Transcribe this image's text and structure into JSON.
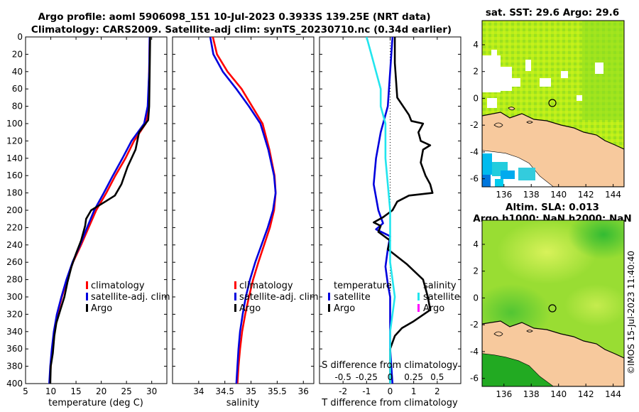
{
  "titles": {
    "line1": "Argo profile: aoml 5906098_151 10-Jul-2023 0.3933S 139.25E (NRT data)",
    "line2": "Climatology: CARS2009. Satellite-adj clim: synTS_20230710.nc (0.34d earlier)",
    "map1": "sat. SST: 29.6 Argo: 29.6",
    "map2_line1": "Altim. SLA: 0.013",
    "map2_line2": "Argo h1000: NaN h2000: NaN",
    "stamp": "©IMOS 15-Jul-2023 11:40:40"
  },
  "colors": {
    "climatology": "#ff0000",
    "satellite": "#0000dd",
    "argo": "#000000",
    "salinity_satellite": "#22e5ee",
    "salinity_argo": "#ff00ff",
    "land": "#f7c99d"
  },
  "chart_data": [
    {
      "type": "line",
      "name": "temperature",
      "xlabel": "temperature (deg C)",
      "xlim": [
        5,
        33
      ],
      "xticks": [
        5,
        10,
        15,
        20,
        25,
        30
      ],
      "ylim": [
        0,
        400
      ],
      "yticks": [
        0,
        20,
        40,
        60,
        80,
        100,
        120,
        140,
        160,
        180,
        200,
        220,
        240,
        260,
        280,
        300,
        320,
        340,
        360,
        380,
        400
      ],
      "legend": [
        "climatology",
        "satellite-adj. clim",
        "Argo"
      ],
      "series": [
        {
          "name": "climatology",
          "points": [
            [
              29.6,
              0
            ],
            [
              29.5,
              40
            ],
            [
              29.3,
              80
            ],
            [
              28.8,
              100
            ],
            [
              26.5,
              120
            ],
            [
              24.8,
              140
            ],
            [
              22.8,
              160
            ],
            [
              21.0,
              180
            ],
            [
              19.0,
              200
            ],
            [
              17.5,
              220
            ],
            [
              16.0,
              240
            ],
            [
              14.4,
              260
            ],
            [
              13.2,
              280
            ],
            [
              12.2,
              300
            ],
            [
              11.3,
              320
            ],
            [
              10.7,
              340
            ],
            [
              10.3,
              360
            ],
            [
              10.0,
              380
            ],
            [
              9.8,
              400
            ]
          ]
        },
        {
          "name": "satellite-adj. clim",
          "points": [
            [
              29.6,
              0
            ],
            [
              29.5,
              40
            ],
            [
              29.2,
              80
            ],
            [
              28.5,
              100
            ],
            [
              26.0,
              120
            ],
            [
              24.2,
              140
            ],
            [
              22.3,
              160
            ],
            [
              20.5,
              180
            ],
            [
              18.6,
              200
            ],
            [
              17.2,
              220
            ],
            [
              15.8,
              240
            ],
            [
              14.3,
              260
            ],
            [
              13.1,
              280
            ],
            [
              12.1,
              300
            ],
            [
              11.2,
              320
            ],
            [
              10.6,
              340
            ],
            [
              10.2,
              360
            ],
            [
              9.9,
              380
            ],
            [
              9.7,
              400
            ]
          ]
        },
        {
          "name": "Argo",
          "points": [
            [
              29.7,
              0
            ],
            [
              29.6,
              40
            ],
            [
              29.5,
              80
            ],
            [
              29.3,
              96
            ],
            [
              27.5,
              110
            ],
            [
              26.8,
              130
            ],
            [
              25.2,
              150
            ],
            [
              24.0,
              170
            ],
            [
              22.7,
              183
            ],
            [
              20.8,
              190
            ],
            [
              18.0,
              200
            ],
            [
              17.0,
              210
            ],
            [
              16.8,
              218
            ],
            [
              16.0,
              235
            ],
            [
              15.0,
              250
            ],
            [
              14.1,
              265
            ],
            [
              13.3,
              283
            ],
            [
              12.7,
              300
            ],
            [
              11.9,
              315
            ],
            [
              11.1,
              330
            ],
            [
              10.7,
              345
            ],
            [
              10.4,
              365
            ],
            [
              10.0,
              380
            ],
            [
              9.9,
              400
            ]
          ]
        }
      ]
    },
    {
      "type": "line",
      "name": "salinity",
      "xlabel": "salinity",
      "xlim": [
        33.5,
        36.2
      ],
      "xticks": [
        34,
        34.5,
        35,
        35.5,
        36
      ],
      "ylim": [
        0,
        400
      ],
      "legend": [
        "climatology",
        "satellite-adj. clim",
        "Argo"
      ],
      "series": [
        {
          "name": "climatology",
          "points": [
            [
              34.27,
              0
            ],
            [
              34.35,
              20
            ],
            [
              34.55,
              40
            ],
            [
              34.82,
              60
            ],
            [
              35.02,
              80
            ],
            [
              35.22,
              100
            ],
            [
              35.35,
              130
            ],
            [
              35.45,
              160
            ],
            [
              35.47,
              180
            ],
            [
              35.44,
              200
            ],
            [
              35.36,
              220
            ],
            [
              35.25,
              240
            ],
            [
              35.14,
              260
            ],
            [
              35.04,
              280
            ],
            [
              34.96,
              300
            ],
            [
              34.89,
              320
            ],
            [
              34.83,
              340
            ],
            [
              34.79,
              360
            ],
            [
              34.76,
              380
            ],
            [
              34.74,
              400
            ]
          ]
        },
        {
          "name": "satellite-adj. clim",
          "points": [
            [
              34.22,
              0
            ],
            [
              34.28,
              20
            ],
            [
              34.46,
              40
            ],
            [
              34.72,
              60
            ],
            [
              34.96,
              80
            ],
            [
              35.18,
              100
            ],
            [
              35.33,
              130
            ],
            [
              35.44,
              160
            ],
            [
              35.47,
              180
            ],
            [
              35.42,
              200
            ],
            [
              35.32,
              220
            ],
            [
              35.2,
              240
            ],
            [
              35.08,
              260
            ],
            [
              34.98,
              280
            ],
            [
              34.9,
              300
            ],
            [
              34.84,
              320
            ],
            [
              34.79,
              340
            ],
            [
              34.76,
              360
            ],
            [
              34.74,
              380
            ],
            [
              34.72,
              400
            ]
          ]
        }
      ]
    },
    {
      "type": "line",
      "name": "differences",
      "xlabel": "T difference from climatology",
      "xlim": [
        -3,
        3
      ],
      "xticks": [
        -2,
        -1,
        0,
        1,
        2
      ],
      "x2label": "S difference from climatology",
      "x2ticks": [
        "-0.5",
        "-0.25",
        "0",
        "0.25",
        "0.5"
      ],
      "ylim": [
        0,
        400
      ],
      "legend_left": [
        "temperature",
        "satellite",
        "Argo"
      ],
      "legend_right": [
        "salinity",
        "satellite",
        "Argo"
      ],
      "series": [
        {
          "name": "temperature satellite",
          "points": [
            [
              0.1,
              0
            ],
            [
              0.0,
              40
            ],
            [
              -0.1,
              80
            ],
            [
              -0.4,
              110
            ],
            [
              -0.6,
              140
            ],
            [
              -0.7,
              170
            ],
            [
              -0.5,
              200
            ],
            [
              -0.3,
              215
            ],
            [
              -0.6,
              222
            ],
            [
              0.0,
              230
            ],
            [
              -0.1,
              245
            ],
            [
              -0.2,
              265
            ],
            [
              -0.1,
              285
            ],
            [
              0.0,
              300
            ],
            [
              0.0,
              330
            ],
            [
              0.0,
              360
            ],
            [
              0.1,
              400
            ]
          ]
        },
        {
          "name": "temperature Argo",
          "points": [
            [
              0.2,
              0
            ],
            [
              0.2,
              30
            ],
            [
              0.3,
              70
            ],
            [
              0.8,
              90
            ],
            [
              0.9,
              97
            ],
            [
              1.4,
              100
            ],
            [
              1.2,
              110
            ],
            [
              1.3,
              120
            ],
            [
              1.7,
              125
            ],
            [
              1.4,
              130
            ],
            [
              1.3,
              145
            ],
            [
              1.5,
              160
            ],
            [
              1.7,
              170
            ],
            [
              1.8,
              180
            ],
            [
              0.8,
              183
            ],
            [
              0.3,
              190
            ],
            [
              0.1,
              200
            ],
            [
              -0.3,
              208
            ],
            [
              -0.7,
              214
            ],
            [
              -0.4,
              218
            ],
            [
              -0.5,
              225
            ],
            [
              0.0,
              235
            ],
            [
              -0.1,
              245
            ],
            [
              0.7,
              262
            ],
            [
              1.4,
              280
            ],
            [
              1.6,
              300
            ],
            [
              1.7,
              315
            ],
            [
              1.0,
              328
            ],
            [
              0.5,
              336
            ],
            [
              0.2,
              345
            ],
            [
              0.0,
              360
            ],
            [
              0.0,
              380
            ],
            [
              0.0,
              400
            ]
          ]
        },
        {
          "name": "salinity satellite",
          "points": [
            [
              -0.25,
              0
            ],
            [
              -0.2,
              20
            ],
            [
              -0.15,
              40
            ],
            [
              -0.1,
              60
            ],
            [
              -0.1,
              80
            ],
            [
              -0.05,
              100
            ],
            [
              -0.05,
              140
            ],
            [
              0.0,
              200
            ],
            [
              0.0,
              260
            ],
            [
              0.05,
              300
            ],
            [
              0.0,
              340
            ],
            [
              0.0,
              400
            ]
          ]
        }
      ]
    },
    {
      "type": "heatmap",
      "name": "sat. SST map",
      "xticks": [
        136,
        138,
        140,
        142,
        144
      ],
      "yticks": [
        4,
        2,
        0,
        -2,
        -4,
        -6
      ],
      "argo_position": [
        139.25,
        -0.39
      ]
    },
    {
      "type": "heatmap",
      "name": "Altim. SLA map",
      "xticks": [
        136,
        138,
        140,
        142,
        144
      ],
      "yticks": [
        4,
        2,
        0,
        -2,
        -4,
        -6
      ],
      "argo_position": [
        139.25,
        -0.39
      ]
    }
  ]
}
